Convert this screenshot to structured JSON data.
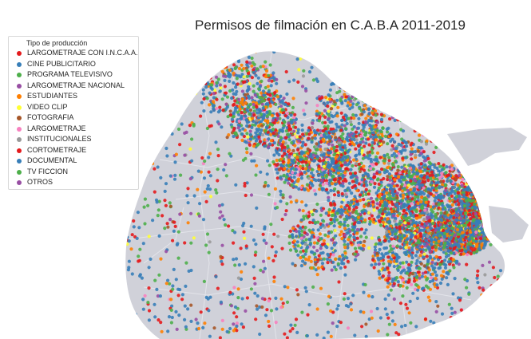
{
  "map": {
    "title": "Permisos de filmación en C.A.B.A 2011-2019",
    "land_color": "#d0d1d9",
    "boundary_color": "#e3e4ea"
  },
  "legend": {
    "title": "Tipo de producción",
    "placement": "upper-left",
    "items": [
      {
        "label": "LARGOMETRAJE CON I.N.C.A.A.",
        "color": "#e41a1c"
      },
      {
        "label": "CINE PUBLICITARIO",
        "color": "#377eb8"
      },
      {
        "label": "PROGRAMA TELEVISIVO",
        "color": "#4daf4a"
      },
      {
        "label": "LARGOMETRAJE NACIONAL",
        "color": "#984ea3"
      },
      {
        "label": "ESTUDIANTES",
        "color": "#ff7f00"
      },
      {
        "label": "VIDEO CLIP",
        "color": "#ffff33"
      },
      {
        "label": "FOTOGRAFIA",
        "color": "#a65628"
      },
      {
        "label": "LARGOMETRAJE",
        "color": "#f781bf"
      },
      {
        "label": "INSTITUCIONALES",
        "color": "#999999"
      },
      {
        "label": "CORTOMETRAJE",
        "color": "#e41a1c"
      },
      {
        "label": "DOCUMENTAL",
        "color": "#377eb8"
      },
      {
        "label": "TV FICCION",
        "color": "#4daf4a"
      },
      {
        "label": "OTROS",
        "color": "#984ea3"
      }
    ]
  }
}
